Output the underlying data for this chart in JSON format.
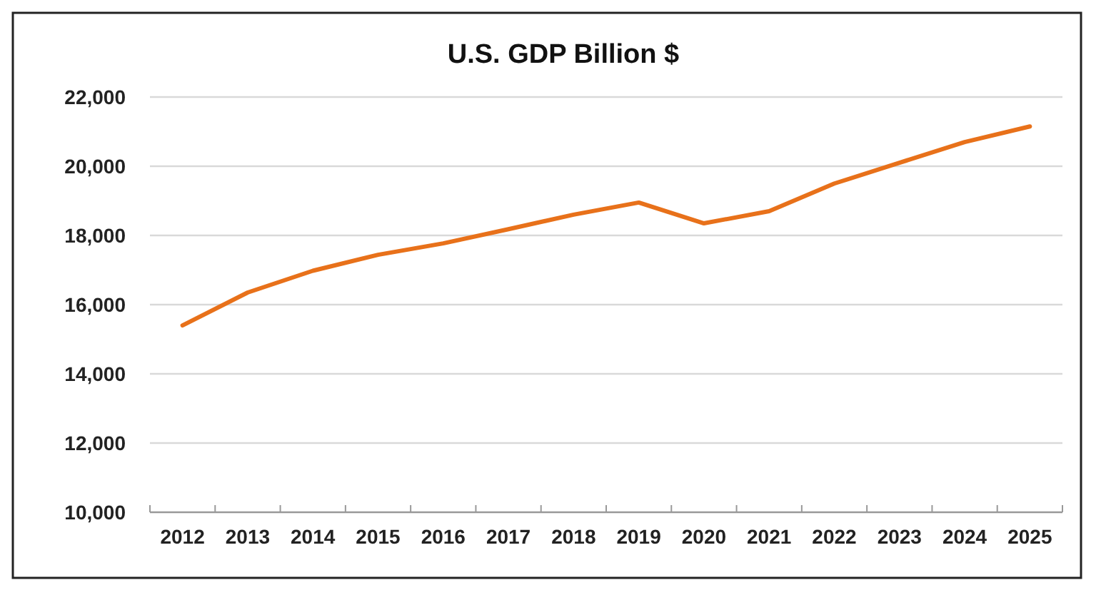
{
  "chart_data": {
    "type": "line",
    "title": "U.S. GDP Billion $",
    "categories": [
      "2012",
      "2013",
      "2014",
      "2015",
      "2016",
      "2017",
      "2018",
      "2019",
      "2020",
      "2021",
      "2022",
      "2023",
      "2024",
      "2025"
    ],
    "series": [
      {
        "color": "#e8711a",
        "values": [
          15400,
          16350,
          16980,
          17440,
          17770,
          18180,
          18600,
          18950,
          18350,
          18700,
          19500,
          20100,
          20700,
          21150
        ]
      }
    ],
    "ylim": [
      10000,
      22000
    ],
    "yticks": [
      {
        "value": 10000,
        "label": "10,000"
      },
      {
        "value": 12000,
        "label": "12,000"
      },
      {
        "value": 14000,
        "label": "14,000"
      },
      {
        "value": 16000,
        "label": "16,000"
      },
      {
        "value": 18000,
        "label": "18,000"
      },
      {
        "value": 20000,
        "label": "20,000"
      },
      {
        "value": 22000,
        "label": "22,000"
      }
    ],
    "grid": "y",
    "marker": "none",
    "line_style": "solid"
  }
}
